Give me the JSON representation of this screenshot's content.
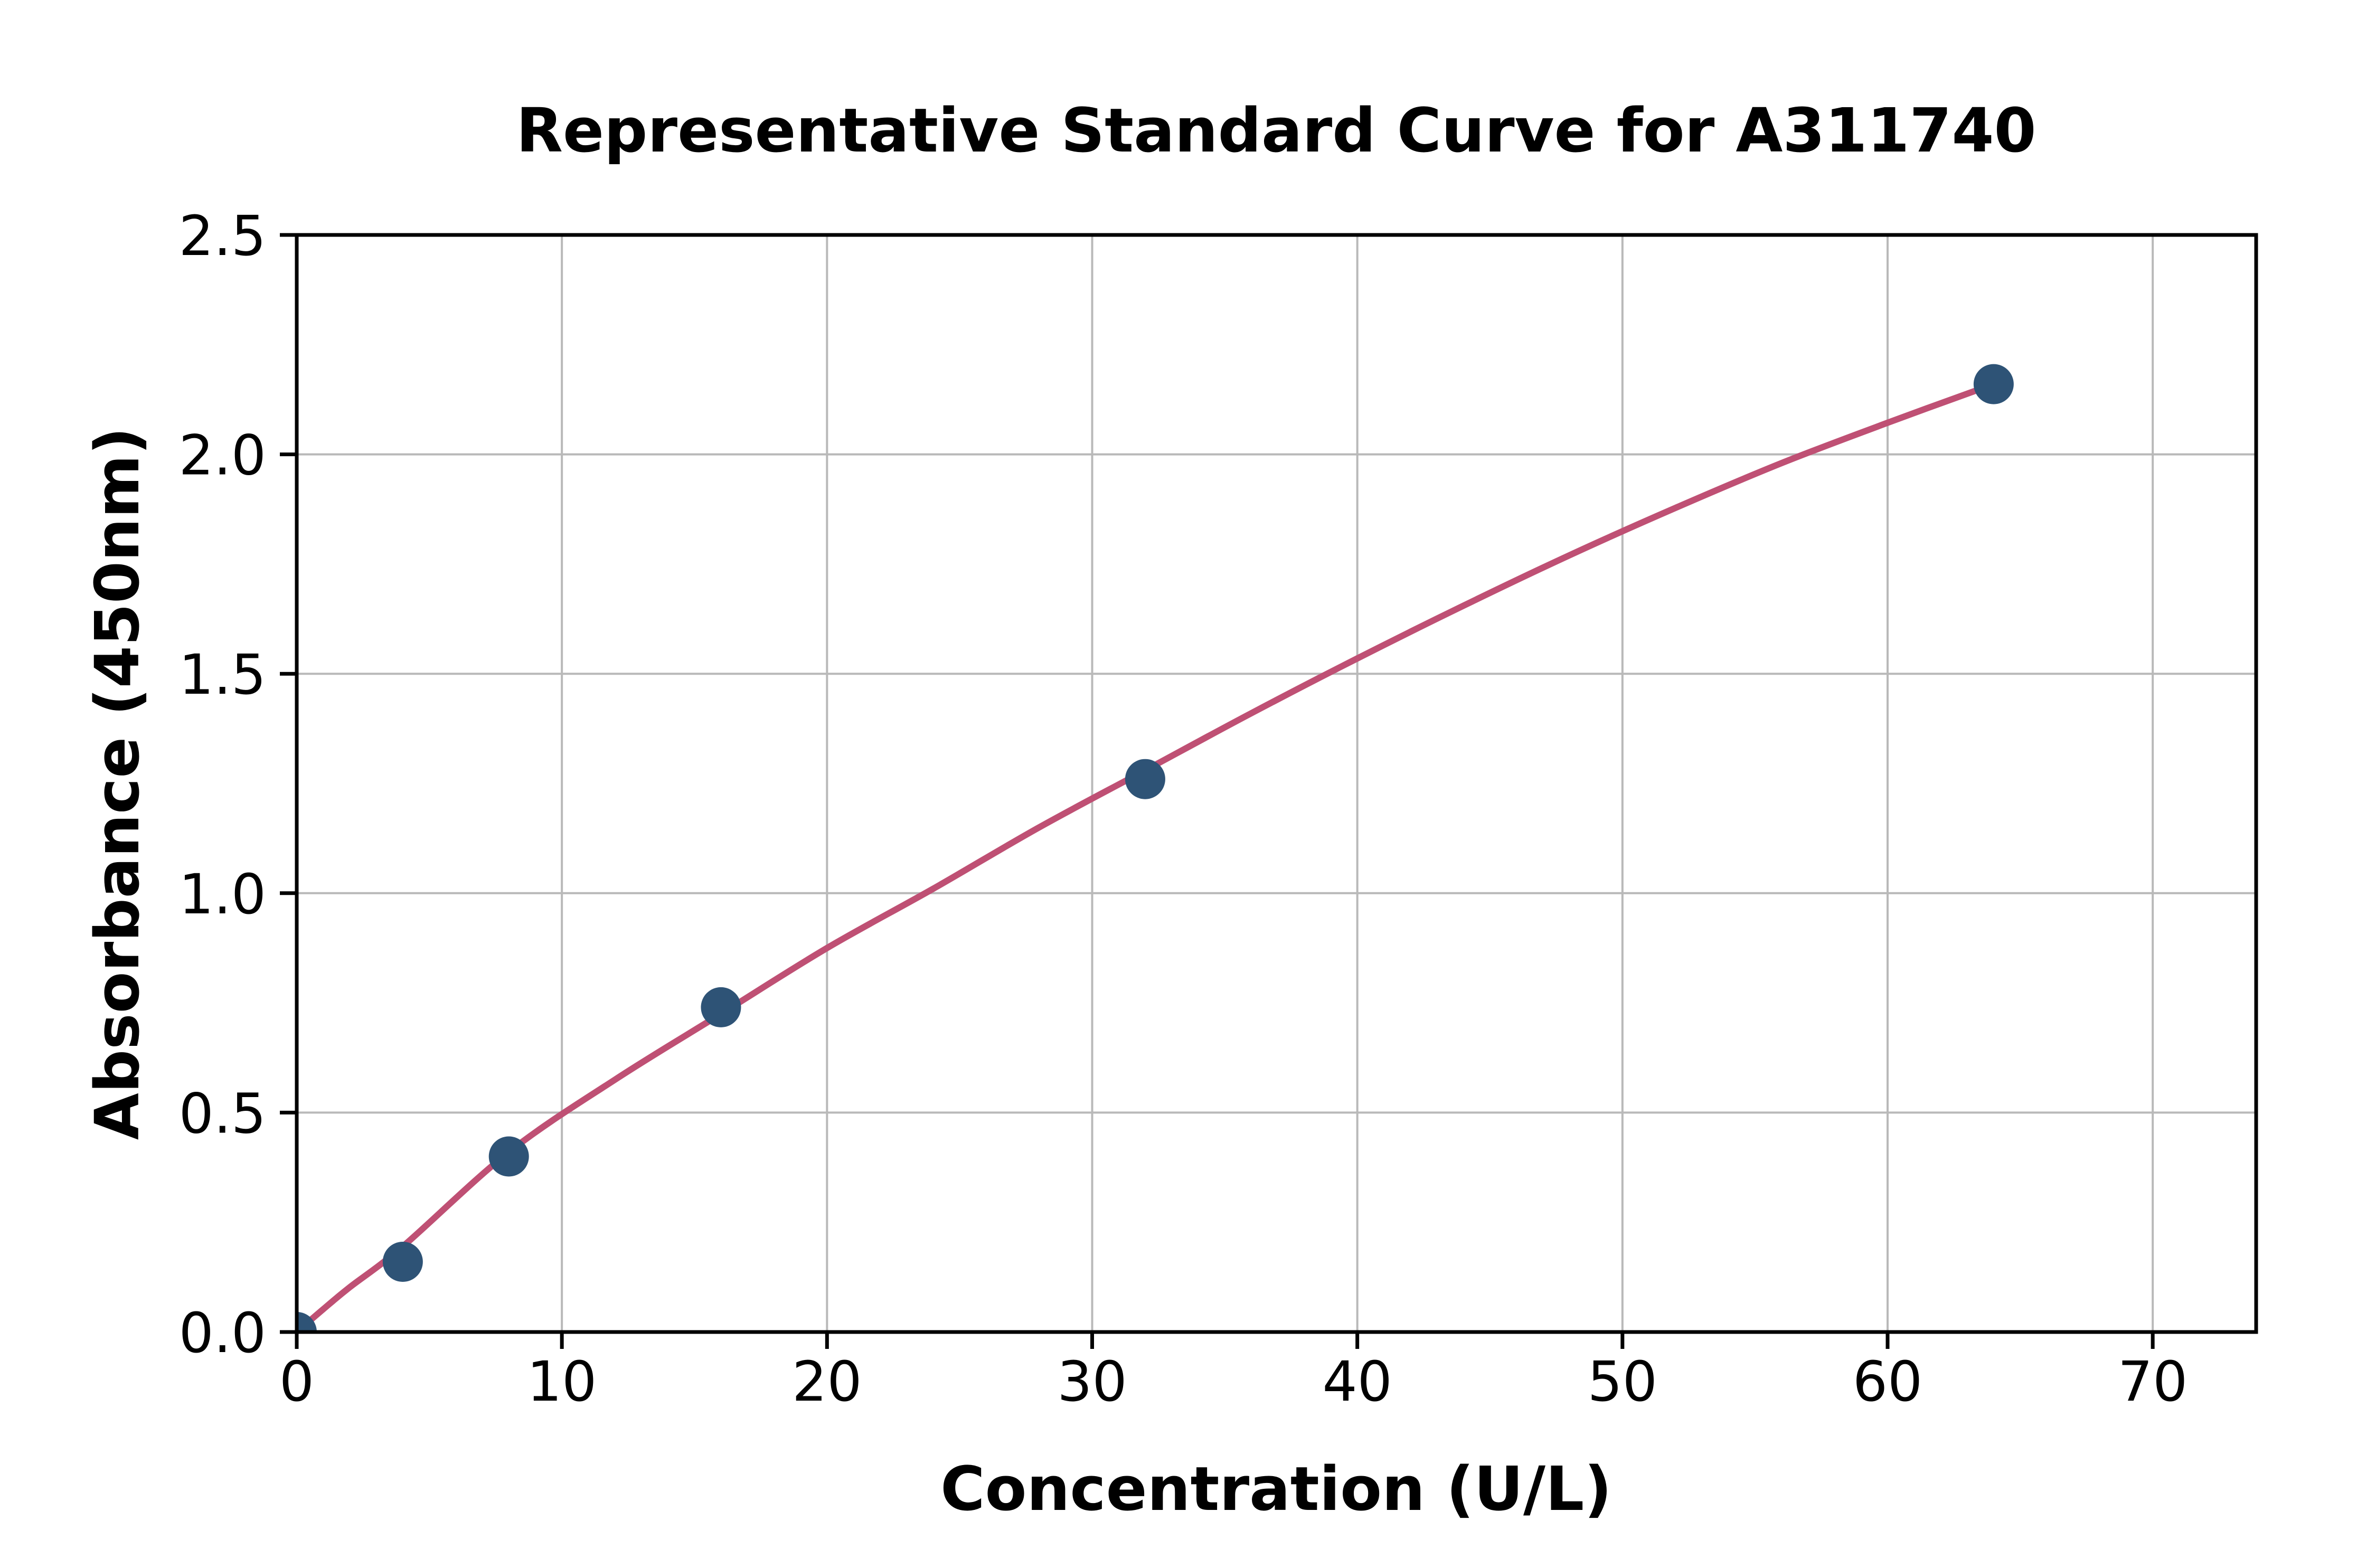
{
  "figure": {
    "background": "#ffffff"
  },
  "chart_data": {
    "type": "scatter",
    "title": "Representative Standard Curve for A311740",
    "xlabel": "Concentration (U/L)",
    "ylabel": "Absorbance (450nm)",
    "xlim": [
      0,
      73.9
    ],
    "ylim": [
      0,
      2.5
    ],
    "x_ticks": [
      0,
      10,
      20,
      30,
      40,
      50,
      60,
      70
    ],
    "y_ticks": [
      "0.0",
      "0.5",
      "1.0",
      "1.5",
      "2.0",
      "2.5"
    ],
    "grid": true,
    "legend": "none",
    "series": [
      {
        "name": "standards",
        "points": [
          {
            "x": 0,
            "y": 0.0
          },
          {
            "x": 4,
            "y": 0.16
          },
          {
            "x": 8,
            "y": 0.4
          },
          {
            "x": 16,
            "y": 0.74
          },
          {
            "x": 32,
            "y": 1.26
          },
          {
            "x": 64,
            "y": 2.16
          }
        ]
      },
      {
        "name": "fit-curve",
        "samples": [
          {
            "x": 0,
            "y": 0.0
          },
          {
            "x": 1,
            "y": 0.052
          },
          {
            "x": 2,
            "y": 0.102
          },
          {
            "x": 4,
            "y": 0.195
          },
          {
            "x": 8,
            "y": 0.41
          },
          {
            "x": 12,
            "y": 0.575
          },
          {
            "x": 16,
            "y": 0.725
          },
          {
            "x": 20,
            "y": 0.875
          },
          {
            "x": 24,
            "y": 1.01
          },
          {
            "x": 28,
            "y": 1.15
          },
          {
            "x": 32,
            "y": 1.28
          },
          {
            "x": 36,
            "y": 1.41
          },
          {
            "x": 40,
            "y": 1.535
          },
          {
            "x": 44,
            "y": 1.655
          },
          {
            "x": 48,
            "y": 1.77
          },
          {
            "x": 52,
            "y": 1.878
          },
          {
            "x": 56,
            "y": 1.98
          },
          {
            "x": 60,
            "y": 2.072
          },
          {
            "x": 64,
            "y": 2.16
          }
        ]
      }
    ],
    "colors": {
      "marker": "#2E5376",
      "line": "#BF5074",
      "grid": "#B9B9B9",
      "axis": "#000000",
      "text": "#000000",
      "background": "#FFFFFF"
    }
  }
}
